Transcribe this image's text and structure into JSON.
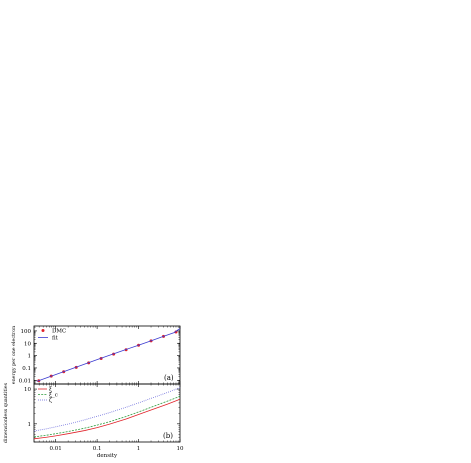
{
  "chart_data": [
    {
      "panel_label": "(a)",
      "type": "scatter",
      "xlabel": "",
      "ylabel": "energy per one electron",
      "x_scale": "log",
      "y_scale": "log",
      "xlim": [
        0.003,
        10
      ],
      "ylim": [
        0.005,
        250
      ],
      "x_ticks": [
        0.01,
        0.1,
        1,
        10
      ],
      "x_tick_labels": [
        "0.01",
        "0.1",
        "1",
        "10"
      ],
      "y_ticks": [
        0.01,
        0.1,
        1,
        10,
        100
      ],
      "y_tick_labels": [
        "0.01",
        "0.1",
        "1",
        "10",
        "100"
      ],
      "legend_position": "top-left",
      "series": [
        {
          "name": "DMC",
          "kind": "points",
          "color": "#e0222a",
          "x": [
            0.00391,
            0.00781,
            0.0156,
            0.0313,
            0.0625,
            0.125,
            0.25,
            0.5,
            1,
            2,
            4,
            8
          ],
          "y": [
            0.0092,
            0.0215,
            0.049,
            0.112,
            0.26,
            0.58,
            1.32,
            3.0,
            6.9,
            15.6,
            36,
            82
          ]
        },
        {
          "name": "fit",
          "kind": "line",
          "color": "#3a3ad0",
          "x": [
            0.0035,
            0.007,
            0.014,
            0.028,
            0.056,
            0.11,
            0.22,
            0.45,
            0.9,
            1.8,
            3.6,
            7.2,
            10
          ],
          "y": [
            0.0081,
            0.0188,
            0.044,
            0.101,
            0.236,
            0.535,
            1.21,
            2.8,
            6.2,
            13.9,
            32,
            73,
            160
          ]
        }
      ]
    },
    {
      "panel_label": "(b)",
      "type": "line",
      "xlabel": "density",
      "ylabel": "dimensionless quantities",
      "x_scale": "log",
      "y_scale": "log",
      "xlim": [
        0.003,
        10
      ],
      "ylim": [
        0.3,
        14
      ],
      "x_ticks": [
        0.01,
        0.1,
        1,
        10
      ],
      "x_tick_labels": [
        "0.01",
        "0.1",
        "1",
        "10"
      ],
      "y_ticks": [
        1,
        10
      ],
      "y_tick_labels": [
        "1",
        "10"
      ],
      "legend_position": "top-left",
      "series": [
        {
          "name": "ξ",
          "style": "solid",
          "color": "#e0222a",
          "x": [
            0.003,
            0.006,
            0.01,
            0.02,
            0.05,
            0.1,
            0.2,
            0.5,
            1,
            2,
            5,
            10
          ],
          "y": [
            0.37,
            0.41,
            0.45,
            0.52,
            0.64,
            0.78,
            0.98,
            1.38,
            1.85,
            2.5,
            3.7,
            5.1
          ]
        },
        {
          "name": "ξ_c",
          "style": "dashed",
          "color": "#2a9a3a",
          "x": [
            0.003,
            0.006,
            0.01,
            0.02,
            0.05,
            0.1,
            0.2,
            0.5,
            1,
            2,
            5,
            10
          ],
          "y": [
            0.42,
            0.47,
            0.52,
            0.6,
            0.75,
            0.92,
            1.15,
            1.63,
            2.2,
            3.0,
            4.5,
            6.2
          ]
        },
        {
          "name": "ζ",
          "style": "dotted",
          "color": "#3a3ad0",
          "x": [
            0.003,
            0.006,
            0.01,
            0.02,
            0.05,
            0.1,
            0.2,
            0.5,
            1,
            2,
            5,
            10
          ],
          "y": [
            0.62,
            0.72,
            0.82,
            0.98,
            1.3,
            1.65,
            2.1,
            3.0,
            4.0,
            5.4,
            8.0,
            11.0
          ]
        }
      ]
    }
  ]
}
